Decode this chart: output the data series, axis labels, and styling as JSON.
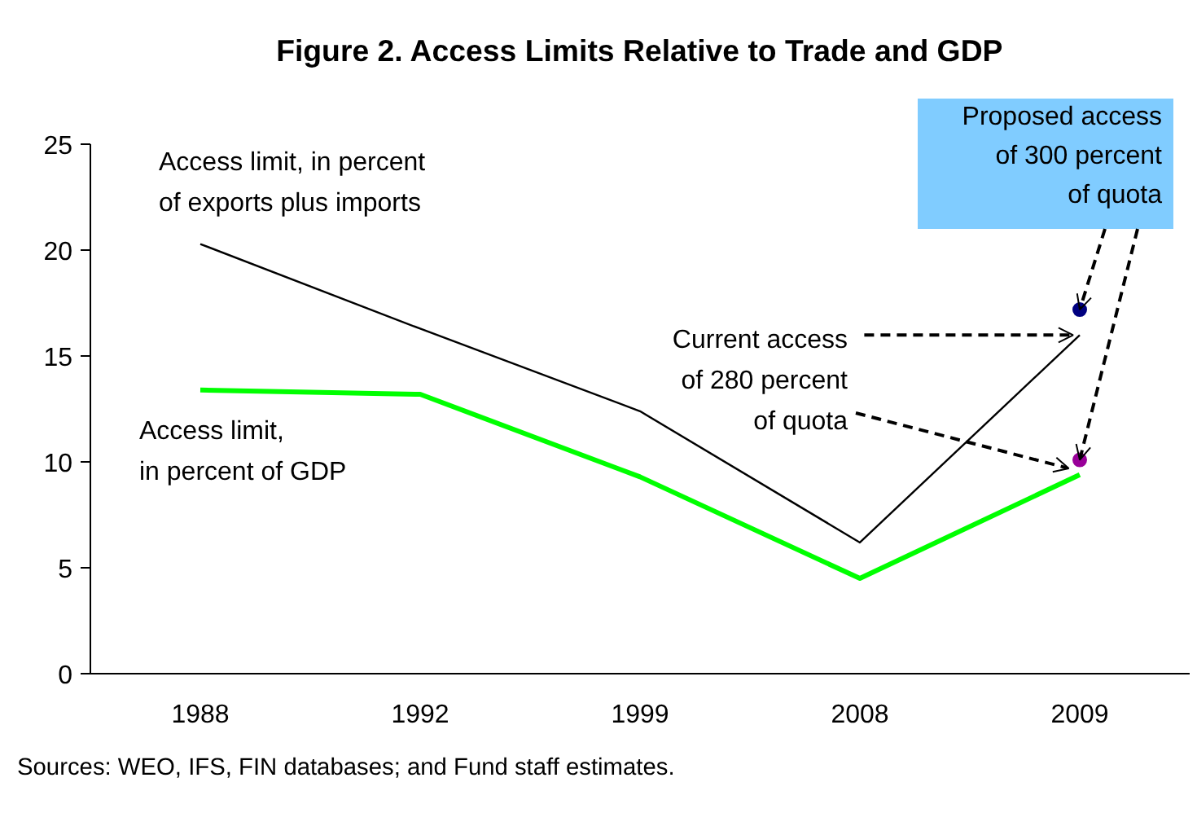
{
  "chart_data": {
    "type": "line",
    "title": "Figure 2. Access Limits Relative to Trade and GDP",
    "categories": [
      "1988",
      "1992",
      "1999",
      "2008",
      "2009"
    ],
    "series": [
      {
        "name": "Access limit, in percent of exports plus imports",
        "color": "#000000",
        "values": [
          20.3,
          16.3,
          12.4,
          6.2,
          16.0
        ]
      },
      {
        "name": "Access limit, in percent of GDP",
        "color": "#00ff00",
        "values": [
          13.4,
          13.2,
          9.3,
          4.5,
          9.4
        ]
      },
      {
        "type": "scatter",
        "color": "#000080",
        "values": [
          null,
          null,
          null,
          null,
          17.2
        ]
      },
      {
        "type": "scatter",
        "color": "#990099",
        "values": [
          null,
          null,
          null,
          null,
          10.1
        ]
      }
    ],
    "ylim": [
      0,
      25
    ],
    "yticks": [
      0,
      5,
      10,
      15,
      20,
      25
    ],
    "grid": false,
    "legend": false,
    "annotations": [
      {
        "text": "Current access of 280 percent of quota",
        "x": "2009",
        "y": 16.0
      },
      {
        "text": "Proposed access of 300 percent of quota",
        "x": "2009",
        "y": 17.2
      },
      "Sources: WEO, IFS, FIN databases; and Fund staff estimates."
    ]
  }
}
